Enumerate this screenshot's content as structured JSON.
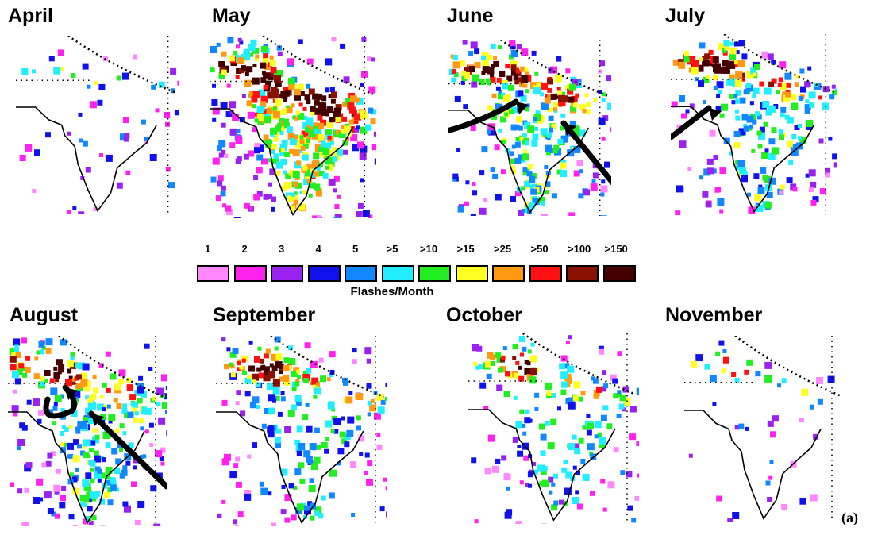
{
  "months": [
    {
      "name": "April",
      "level": 0.18,
      "west_hotspot": 0.3
    },
    {
      "name": "May",
      "level": 0.95,
      "west_hotspot": 0.9
    },
    {
      "name": "June",
      "level": 0.75,
      "west_hotspot": 0.85
    },
    {
      "name": "July",
      "level": 0.6,
      "west_hotspot": 0.9
    },
    {
      "name": "August",
      "level": 0.65,
      "west_hotspot": 0.9
    },
    {
      "name": "September",
      "level": 0.55,
      "west_hotspot": 0.9
    },
    {
      "name": "October",
      "level": 0.5,
      "west_hotspot": 0.7
    },
    {
      "name": "November",
      "level": 0.12,
      "west_hotspot": 0.7
    }
  ],
  "legend": {
    "labels": [
      "1",
      "2",
      "3",
      "4",
      "5",
      ">5",
      ">10",
      ">15",
      ">25",
      ">50",
      ">100",
      ">150"
    ],
    "colors": [
      "#ff88ff",
      "#ff22ee",
      "#9922ee",
      "#1111ee",
      "#1188ff",
      "#22eeff",
      "#22ee22",
      "#ffff22",
      "#ff9911",
      "#ff1111",
      "#881100",
      "#440000"
    ],
    "title": "Flashes/Month"
  },
  "panel_tag": "(a)"
}
